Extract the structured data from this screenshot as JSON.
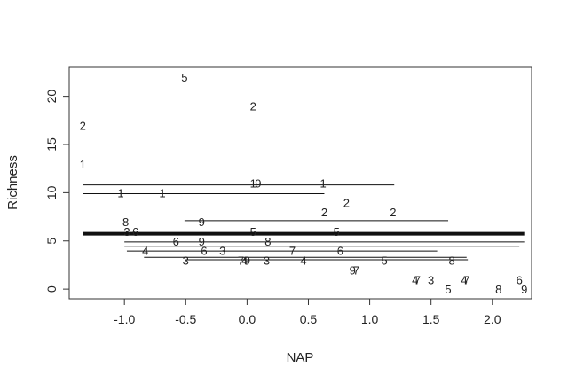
{
  "chart_data": {
    "type": "scatter",
    "title": "",
    "xlabel": "NAP",
    "ylabel": "Richness",
    "xlim": [
      -1.45,
      2.32
    ],
    "ylim": [
      -1.0,
      23.0
    ],
    "xticks": [
      "-1.0",
      "-0.5",
      "0.0",
      "0.5",
      "1.0",
      "1.5",
      "2.0"
    ],
    "yticks": [
      "0",
      "5",
      "10",
      "15",
      "20"
    ],
    "grid": false,
    "legend": "none",
    "points": [
      {
        "x": -0.51,
        "y": 22,
        "label": "5"
      },
      {
        "x": 0.05,
        "y": 19,
        "label": "2"
      },
      {
        "x": -1.34,
        "y": 17,
        "label": "2"
      },
      {
        "x": -1.34,
        "y": 13,
        "label": "1"
      },
      {
        "x": -1.03,
        "y": 10,
        "label": "1"
      },
      {
        "x": -0.69,
        "y": 10,
        "label": "1"
      },
      {
        "x": 0.05,
        "y": 11,
        "label": "1"
      },
      {
        "x": 0.09,
        "y": 11,
        "label": "9"
      },
      {
        "x": 0.62,
        "y": 11,
        "label": "1"
      },
      {
        "x": 0.81,
        "y": 9,
        "label": "2"
      },
      {
        "x": 0.63,
        "y": 8,
        "label": "2"
      },
      {
        "x": 1.19,
        "y": 8,
        "label": "2"
      },
      {
        "x": -0.99,
        "y": 7,
        "label": "8"
      },
      {
        "x": -0.37,
        "y": 7,
        "label": "9"
      },
      {
        "x": -0.98,
        "y": 6,
        "label": "3"
      },
      {
        "x": -0.91,
        "y": 6,
        "label": "6"
      },
      {
        "x": 0.05,
        "y": 6,
        "label": "5"
      },
      {
        "x": 0.73,
        "y": 6,
        "label": "5"
      },
      {
        "x": -0.58,
        "y": 5,
        "label": "6"
      },
      {
        "x": -0.37,
        "y": 5,
        "label": "9"
      },
      {
        "x": 0.17,
        "y": 5,
        "label": "8"
      },
      {
        "x": -0.83,
        "y": 4,
        "label": "4"
      },
      {
        "x": -0.35,
        "y": 4,
        "label": "6"
      },
      {
        "x": -0.2,
        "y": 4,
        "label": "3"
      },
      {
        "x": 0.37,
        "y": 4,
        "label": "7"
      },
      {
        "x": 0.76,
        "y": 4,
        "label": "6"
      },
      {
        "x": -0.5,
        "y": 3,
        "label": "3"
      },
      {
        "x": -0.05,
        "y": 3,
        "label": "7"
      },
      {
        "x": -0.02,
        "y": 3,
        "label": "4"
      },
      {
        "x": 0.0,
        "y": 3,
        "label": "9"
      },
      {
        "x": 0.16,
        "y": 3,
        "label": "3"
      },
      {
        "x": 0.46,
        "y": 3,
        "label": "4"
      },
      {
        "x": 1.12,
        "y": 3,
        "label": "5"
      },
      {
        "x": 1.67,
        "y": 3,
        "label": "8"
      },
      {
        "x": 0.86,
        "y": 2,
        "label": "9"
      },
      {
        "x": 0.89,
        "y": 2,
        "label": "7"
      },
      {
        "x": 1.37,
        "y": 1,
        "label": "4"
      },
      {
        "x": 1.39,
        "y": 1,
        "label": "7"
      },
      {
        "x": 1.5,
        "y": 1,
        "label": "3"
      },
      {
        "x": 1.77,
        "y": 1,
        "label": "4"
      },
      {
        "x": 1.79,
        "y": 1,
        "label": "7"
      },
      {
        "x": 2.22,
        "y": 1,
        "label": "6"
      },
      {
        "x": 1.64,
        "y": 0,
        "label": "5"
      },
      {
        "x": 2.05,
        "y": 0,
        "label": "8"
      },
      {
        "x": 2.26,
        "y": 0,
        "label": "9"
      }
    ],
    "fitted_lines": [
      {
        "x0": -1.34,
        "x1": 1.2,
        "y": 10.8,
        "bold": false
      },
      {
        "x0": -1.34,
        "x1": 0.63,
        "y": 9.9,
        "bold": false
      },
      {
        "x0": -0.51,
        "x1": 1.64,
        "y": 7.1,
        "bold": false
      },
      {
        "x0": -1.34,
        "x1": 2.26,
        "y": 5.75,
        "bold": true
      },
      {
        "x0": -1.0,
        "x1": 2.26,
        "y": 4.9,
        "bold": false
      },
      {
        "x0": -1.0,
        "x1": 2.22,
        "y": 4.45,
        "bold": false
      },
      {
        "x0": -0.98,
        "x1": 1.55,
        "y": 3.95,
        "bold": false
      },
      {
        "x0": -0.84,
        "x1": 1.79,
        "y": 3.3,
        "bold": false
      },
      {
        "x0": -0.5,
        "x1": 1.8,
        "y": 3.05,
        "bold": false
      }
    ]
  }
}
